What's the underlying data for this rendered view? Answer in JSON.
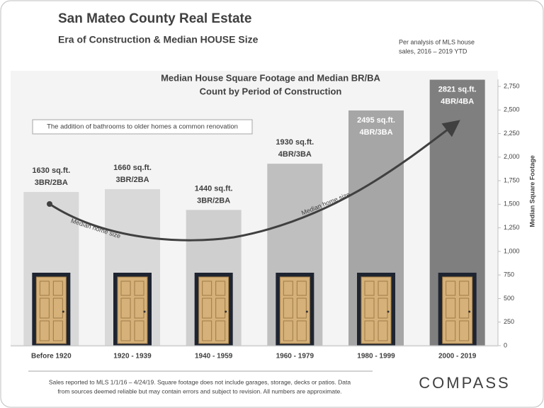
{
  "header": {
    "title": "San Mateo County Real Estate",
    "subtitle": "Era of Construction  & Median HOUSE Size",
    "note": [
      "Per analysis  of MLS house",
      "sales, 2016 – 2019 YTD"
    ]
  },
  "chart_data": {
    "type": "bar",
    "title": [
      "Median House Square Footage and Median BR/BA",
      "Count by Period of Construction"
    ],
    "categories": [
      "Before 1920",
      "1920 - 1939",
      "1940 - 1959",
      "1960 - 1979",
      "1980 - 1999",
      "2000 - 2019"
    ],
    "values": [
      1630,
      1660,
      1440,
      1930,
      2495,
      2821
    ],
    "value_labels": [
      "1630 sq.ft.",
      "1660 sq.ft.",
      "1440 sq.ft.",
      "1930 sq.ft.",
      "2495 sq.ft.",
      "2821 sq.ft."
    ],
    "br_ba": [
      "3BR/2BA",
      "3BR/2BA",
      "3BR/2BA",
      "4BR/3BA",
      "4BR/3BA",
      "4BR/4BA"
    ],
    "colors": [
      "#d9d9d9",
      "#d9d9d9",
      "#cfcfcf",
      "#bfbfbf",
      "#a6a6a6",
      "#7f7f7f"
    ],
    "ylim": [
      0,
      2750
    ],
    "yticks": [
      0,
      250,
      500,
      750,
      {
        "value": 1000,
        "label": "1,000"
      },
      {
        "value": 1250,
        "label": "1,250"
      },
      {
        "value": 1500,
        "label": "1,500"
      },
      {
        "value": 1750,
        "label": "1,750"
      },
      {
        "value": 2000,
        "label": "2,000"
      },
      {
        "value": 2250,
        "label": "2,250"
      },
      {
        "value": 2500,
        "label": "2,500"
      },
      {
        "value": 2750,
        "label": "2,750"
      }
    ],
    "y_axis_label": "Median Square Footage",
    "y_axis_side": "right",
    "annotations": {
      "box": "The addition of bathrooms to older homes a common renovation",
      "curve_left": "Median home size",
      "curve_right": "Median home size"
    }
  },
  "footer": {
    "lines": [
      "Sales reported  to MLS 1/1/16 – 4/24/19. Square footage does  not include garages, storage, decks or patios. Data",
      "from sources deemed reliable but may contain errors and subject to revision. All numbers  are approximate."
    ],
    "logo": "COMPASS"
  }
}
